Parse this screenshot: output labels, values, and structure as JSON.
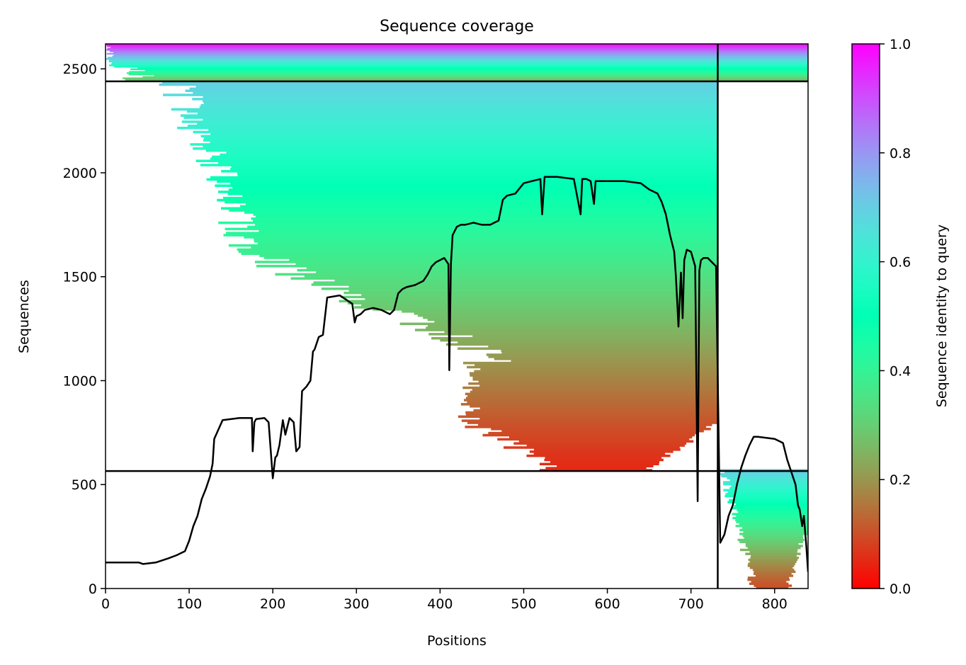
{
  "chart_data": {
    "type": "heatmap",
    "title": "Sequence coverage",
    "xlabel": "Positions",
    "ylabel": "Sequences",
    "xlim": [
      0,
      840
    ],
    "ylim": [
      0,
      2620
    ],
    "xticks": [
      0,
      100,
      200,
      300,
      400,
      500,
      600,
      700,
      800
    ],
    "yticks": [
      0,
      500,
      1000,
      1500,
      2000,
      2500
    ],
    "colorbar": {
      "label": "Sequence identity to query",
      "range": [
        0,
        1
      ],
      "ticks": [
        "0.0",
        "0.2",
        "0.4",
        "0.6",
        "0.8",
        "1.0"
      ],
      "colormap": "rainbow_r"
    },
    "block_boundaries": {
      "vertical_x": [
        732
      ],
      "horizontal_y": [
        565,
        2440
      ]
    },
    "coverage_line": {
      "x": [
        0,
        40,
        45,
        60,
        75,
        85,
        95,
        100,
        105,
        110,
        115,
        120,
        125,
        128,
        130,
        140,
        160,
        175,
        176,
        178,
        180,
        190,
        195,
        198,
        200,
        203,
        205,
        208,
        212,
        215,
        220,
        225,
        228,
        232,
        235,
        240,
        245,
        248,
        250,
        255,
        260,
        265,
        280,
        295,
        298,
        300,
        305,
        310,
        320,
        330,
        340,
        345,
        350,
        355,
        360,
        370,
        380,
        385,
        390,
        395,
        400,
        405,
        410,
        411,
        413,
        415,
        420,
        425,
        430,
        440,
        450,
        460,
        465,
        470,
        475,
        480,
        490,
        500,
        510,
        520,
        522,
        525,
        540,
        560,
        568,
        570,
        575,
        580,
        584,
        586,
        590,
        600,
        620,
        640,
        650,
        660,
        665,
        670,
        675,
        680,
        682,
        685,
        688,
        690,
        692,
        695,
        700,
        705,
        708,
        710,
        712,
        715,
        720,
        730,
        735,
        740,
        745,
        750,
        755,
        760,
        765,
        770,
        775,
        780,
        790,
        800,
        810,
        815,
        820,
        825,
        828,
        830,
        833,
        835,
        838,
        840
      ],
      "y": [
        125,
        125,
        118,
        125,
        145,
        160,
        180,
        230,
        300,
        350,
        430,
        480,
        540,
        600,
        720,
        810,
        820,
        820,
        660,
        800,
        815,
        820,
        800,
        640,
        530,
        630,
        640,
        690,
        810,
        740,
        820,
        800,
        660,
        680,
        950,
        970,
        1000,
        1140,
        1150,
        1210,
        1220,
        1400,
        1410,
        1370,
        1280,
        1310,
        1320,
        1340,
        1350,
        1340,
        1320,
        1340,
        1420,
        1440,
        1450,
        1460,
        1480,
        1510,
        1550,
        1570,
        1580,
        1590,
        1560,
        1050,
        1560,
        1700,
        1740,
        1750,
        1750,
        1760,
        1750,
        1750,
        1760,
        1770,
        1870,
        1890,
        1900,
        1950,
        1960,
        1970,
        1800,
        1980,
        1980,
        1970,
        1800,
        1970,
        1970,
        1960,
        1850,
        1960,
        1960,
        1960,
        1960,
        1950,
        1920,
        1900,
        1860,
        1800,
        1700,
        1620,
        1500,
        1260,
        1520,
        1300,
        1580,
        1630,
        1620,
        1550,
        420,
        1530,
        1580,
        1590,
        1590,
        1550,
        220,
        260,
        350,
        400,
        500,
        580,
        640,
        690,
        730,
        730,
        725,
        720,
        700,
        620,
        560,
        500,
        400,
        380,
        300,
        350,
        200,
        80
      ]
    },
    "blocks": [
      {
        "name": "top",
        "y_range": [
          2440,
          2620
        ],
        "x_range": [
          0,
          840
        ],
        "identity_range": [
          0.25,
          1.0
        ]
      },
      {
        "name": "main",
        "y_range": [
          565,
          2440
        ],
        "x_range": [
          0,
          732
        ],
        "identity_range": [
          0.05,
          0.7
        ]
      },
      {
        "name": "bottom-right",
        "y_range": [
          0,
          565
        ],
        "x_range": [
          732,
          840
        ],
        "identity_range": [
          0.1,
          0.7
        ]
      }
    ]
  }
}
